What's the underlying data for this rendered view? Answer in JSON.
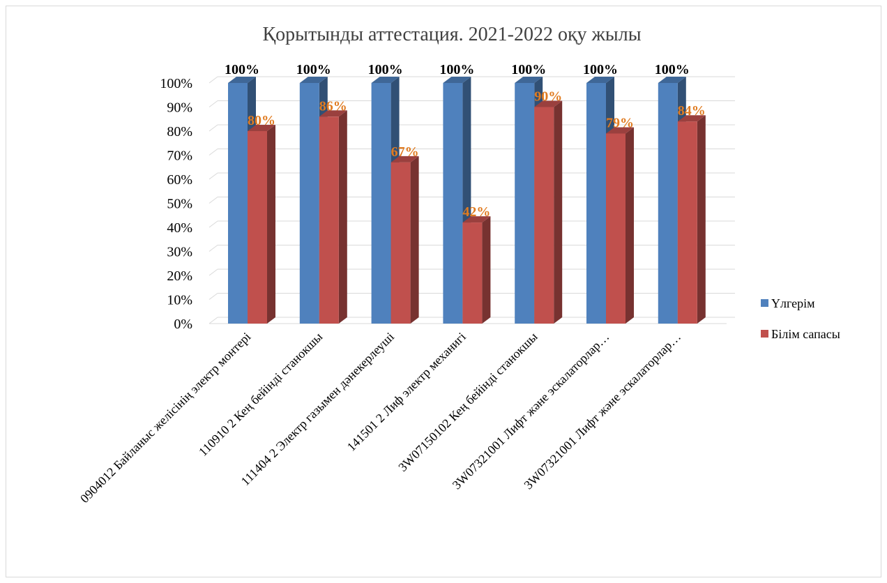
{
  "chart_data": {
    "type": "bar",
    "title": "Қорытынды аттестация. 2021-2022 оқу жылы",
    "categories": [
      "0904012 Байланыс желісінің электр монтері",
      "110910 2 Кең бейінді станокшы",
      "111404 2 Электр газымен дәнекерлеуші",
      "141501 2 Лиф электр механигі",
      "3W07150102 Кең бейінді станокшы",
      "3W07321001 Лифт және эскалаторлар…",
      "3W07321001 Лифт және эскалаторлар…"
    ],
    "series": [
      {
        "name": "Үлгерім",
        "values": [
          100,
          100,
          100,
          100,
          100,
          100,
          100
        ],
        "color": "#4f81bd",
        "labels": [
          "100%",
          "100%",
          "100%",
          "100%",
          "100%",
          "100%",
          "100%"
        ]
      },
      {
        "name": "Білім сапасы",
        "values": [
          80,
          86,
          67,
          42,
          90,
          79,
          84
        ],
        "color": "#c0504d",
        "labels": [
          "80%",
          "86%",
          "67%",
          "42%",
          "90%",
          "79%",
          "84%"
        ]
      }
    ],
    "yticks": [
      "0%",
      "10%",
      "20%",
      "30%",
      "40%",
      "50%",
      "60%",
      "70%",
      "80%",
      "90%",
      "100%"
    ],
    "ylim": [
      0,
      100
    ],
    "grid": true,
    "legend_position": "right",
    "label_color_series2": "#e07b20"
  }
}
